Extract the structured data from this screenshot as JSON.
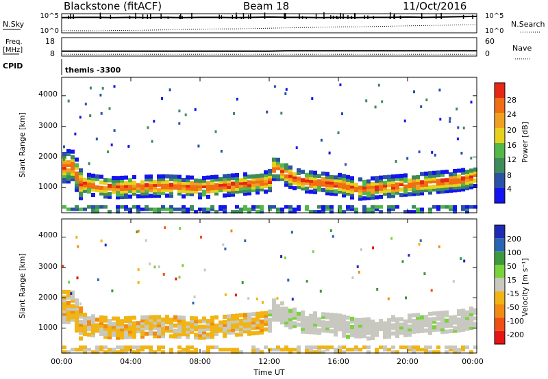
{
  "header": {
    "title_left": "Blackstone (fitACF)",
    "title_mid": "Beam 18",
    "title_right": "11/Oct/2016"
  },
  "info_panels": {
    "nsky_label": "N.Sky",
    "nsky_ticks": [
      "10^5",
      "10^0"
    ],
    "nsearch_label": "N.Search",
    "nsearch_ticks": [
      "10^5",
      "10^0"
    ],
    "freq_label_1": "Freq.",
    "freq_label_2": "[MHz]",
    "freq_ticks": [
      "18",
      "8"
    ],
    "nave_label": "Nave",
    "nave_ticks": [
      "60",
      "0"
    ],
    "cpid_label": "CPID",
    "cpid_value": "themis -3300"
  },
  "axes": {
    "ylabel": "Slant Range [km]",
    "yticks": [
      "1000",
      "2000",
      "3000",
      "4000"
    ],
    "xticks": [
      "00:00",
      "04:00",
      "08:00",
      "12:00",
      "16:00",
      "20:00",
      "00:00"
    ],
    "xlabel": "Time UT"
  },
  "colorbars": {
    "power": {
      "label": "Power [dB]",
      "ticks": [
        "4",
        "8",
        "12",
        "16",
        "20",
        "24",
        "28"
      ],
      "colors": [
        "#1414f0",
        "#2a52a8",
        "#3d8c5a",
        "#52b848",
        "#e6d21e",
        "#f0a020",
        "#f06e14",
        "#e62814"
      ]
    },
    "velocity": {
      "label": "Velocity [m s⁻¹]",
      "ticks": [
        "200",
        "100",
        "50",
        "15",
        "-15",
        "-50",
        "-100",
        "-200"
      ],
      "colors": [
        "#1e2ab4",
        "#2a64b4",
        "#3c9a3c",
        "#7ad23c",
        "#c8c8c0",
        "#f0b414",
        "#f08c14",
        "#f05014",
        "#e61414"
      ]
    }
  },
  "chart_data": [
    {
      "type": "line",
      "title": "N.Sky / N.Search",
      "x_range": [
        "00:00",
        "24:00"
      ],
      "series": [
        {
          "name": "N.Sky",
          "values_log10": [
            4.2,
            4.3,
            4.3,
            4.2,
            4.3,
            4.2,
            4.3,
            4.2,
            4.3,
            4.3,
            4.2,
            4.3,
            4.4,
            4.3,
            4.3,
            4.2,
            4.3,
            4.2,
            4.3,
            4.3,
            4.4,
            4.3,
            4.4,
            4.5,
            4.6
          ]
        },
        {
          "name": "N.Search",
          "values_log10": [
            0.3,
            0.2,
            0.2,
            0.3,
            0.3,
            0.4,
            0.5,
            0.6,
            0.7,
            0.8,
            0.8,
            0.9,
            1.0,
            1.1,
            1.2,
            1.3,
            1.4,
            1.4,
            1.5,
            1.6,
            1.7,
            1.8,
            1.9,
            2.0,
            2.1
          ]
        }
      ]
    },
    {
      "type": "line",
      "title": "Freq / Nave",
      "x_range": [
        "00:00",
        "24:00"
      ],
      "series": [
        {
          "name": "Freq",
          "values": [
            10.2,
            10.2,
            10.2,
            10.2,
            10.2,
            10.2,
            10.2,
            10.2,
            10.2,
            10.2,
            10.2,
            10.2,
            10.2,
            10.4,
            10.4,
            10.4,
            10.4,
            10.4,
            10.4,
            10.4,
            10.4,
            10.4,
            10.4,
            10.4,
            10.4
          ]
        },
        {
          "name": "Nave",
          "values": [
            2,
            2,
            2,
            2,
            2,
            2,
            2,
            2,
            2,
            2,
            2,
            2,
            2,
            2,
            2,
            2,
            2,
            2,
            2,
            2,
            2,
            2,
            2,
            2,
            2
          ]
        }
      ]
    },
    {
      "type": "heatmap",
      "title": "Power",
      "x_range_hours": [
        0,
        24
      ],
      "y_range_km": [
        180,
        4600
      ],
      "band_series": [
        {
          "name": "band_center_km",
          "x_hours": [
            0.5,
            1,
            2,
            3,
            4,
            5,
            6,
            7,
            8,
            9,
            10,
            11,
            11.9,
            12.2,
            13,
            14,
            15,
            16,
            17,
            18,
            19,
            20,
            21,
            22,
            23,
            24
          ],
          "values": [
            1700,
            1150,
            1050,
            1000,
            1030,
            1050,
            1060,
            1030,
            1000,
            1050,
            1100,
            1150,
            1200,
            1700,
            1400,
            1200,
            1150,
            1100,
            950,
            1000,
            1050,
            1100,
            1150,
            1200,
            1250,
            1400
          ]
        }
      ]
    },
    {
      "type": "heatmap",
      "title": "Velocity",
      "x_range_hours": [
        0,
        24
      ],
      "y_range_km": [
        180,
        4600
      ],
      "band_series": [
        {
          "name": "band_center_km",
          "x_hours": [
            0.5,
            1,
            2,
            3,
            4,
            5,
            6,
            7,
            8,
            9,
            10,
            11,
            11.9,
            12.2,
            13,
            14,
            15,
            16,
            17,
            18,
            19,
            20,
            21,
            22,
            23,
            24
          ],
          "values": [
            1700,
            1150,
            1050,
            1000,
            1030,
            1050,
            1060,
            1030,
            1000,
            1050,
            1100,
            1150,
            1200,
            1700,
            1400,
            1200,
            1150,
            1100,
            950,
            1000,
            1050,
            1100,
            1150,
            1200,
            1250,
            1400
          ]
        }
      ]
    }
  ]
}
